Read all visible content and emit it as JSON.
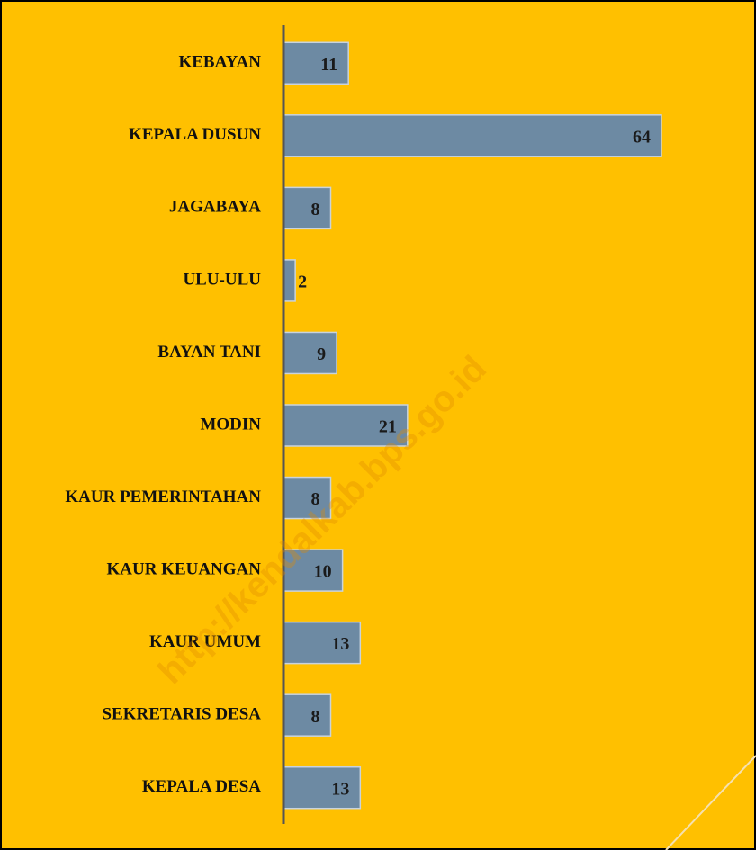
{
  "chart_data": {
    "type": "barh",
    "categories": [
      "KEBAYAN",
      "KEPALA DUSUN",
      "JAGABAYA",
      "ULU-ULU",
      "BAYAN TANI",
      "MODIN",
      "KAUR PEMERINTAHAN",
      "KAUR KEUANGAN",
      "KAUR UMUM",
      "SEKRETARIS DESA",
      "KEPALA DESA"
    ],
    "values": [
      11,
      64,
      8,
      2,
      9,
      21,
      8,
      10,
      13,
      8,
      13
    ],
    "color": "#6d8aa3",
    "background": "#ffc000",
    "watermark": "http://kendalkab.bps.go.id"
  }
}
